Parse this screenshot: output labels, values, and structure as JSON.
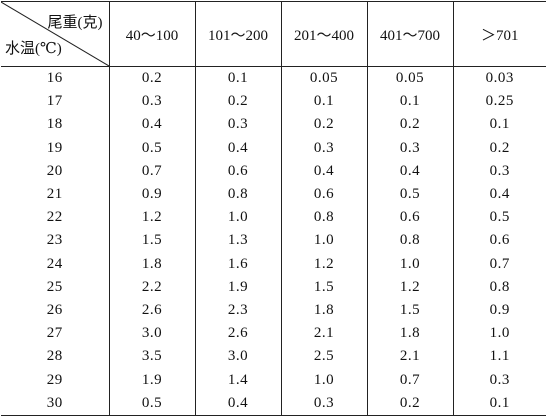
{
  "header": {
    "corner_top": "尾重(克)",
    "corner_bottom": "水温(℃)",
    "columns": [
      "40～100",
      "101～200",
      "201～400",
      "401～700",
      "＞701"
    ]
  },
  "rows": [
    {
      "temp": "16",
      "values": [
        "0.2",
        "0.1",
        "0.05",
        "0.05",
        "0.03"
      ]
    },
    {
      "temp": "17",
      "values": [
        "0.3",
        "0.2",
        "0.1",
        "0.1",
        "0.25"
      ]
    },
    {
      "temp": "18",
      "values": [
        "0.4",
        "0.3",
        "0.2",
        "0.2",
        "0.1"
      ]
    },
    {
      "temp": "19",
      "values": [
        "0.5",
        "0.4",
        "0.3",
        "0.3",
        "0.2"
      ]
    },
    {
      "temp": "20",
      "values": [
        "0.7",
        "0.6",
        "0.4",
        "0.4",
        "0.3"
      ]
    },
    {
      "temp": "21",
      "values": [
        "0.9",
        "0.8",
        "0.6",
        "0.5",
        "0.4"
      ]
    },
    {
      "temp": "22",
      "values": [
        "1.2",
        "1.0",
        "0.8",
        "0.6",
        "0.5"
      ]
    },
    {
      "temp": "23",
      "values": [
        "1.5",
        "1.3",
        "1.0",
        "0.8",
        "0.6"
      ]
    },
    {
      "temp": "24",
      "values": [
        "1.8",
        "1.6",
        "1.2",
        "1.0",
        "0.7"
      ]
    },
    {
      "temp": "25",
      "values": [
        "2.2",
        "1.9",
        "1.5",
        "1.2",
        "0.8"
      ]
    },
    {
      "temp": "26",
      "values": [
        "2.6",
        "2.3",
        "1.8",
        "1.5",
        "0.9"
      ]
    },
    {
      "temp": "27",
      "values": [
        "3.0",
        "2.6",
        "2.1",
        "1.8",
        "1.0"
      ]
    },
    {
      "temp": "28",
      "values": [
        "3.5",
        "3.0",
        "2.5",
        "2.1",
        "1.1"
      ]
    },
    {
      "temp": "29",
      "values": [
        "1.9",
        "1.4",
        "1.0",
        "0.7",
        "0.3"
      ]
    },
    {
      "temp": "30",
      "values": [
        "0.5",
        "0.4",
        "0.3",
        "0.2",
        "0.1"
      ]
    }
  ]
}
